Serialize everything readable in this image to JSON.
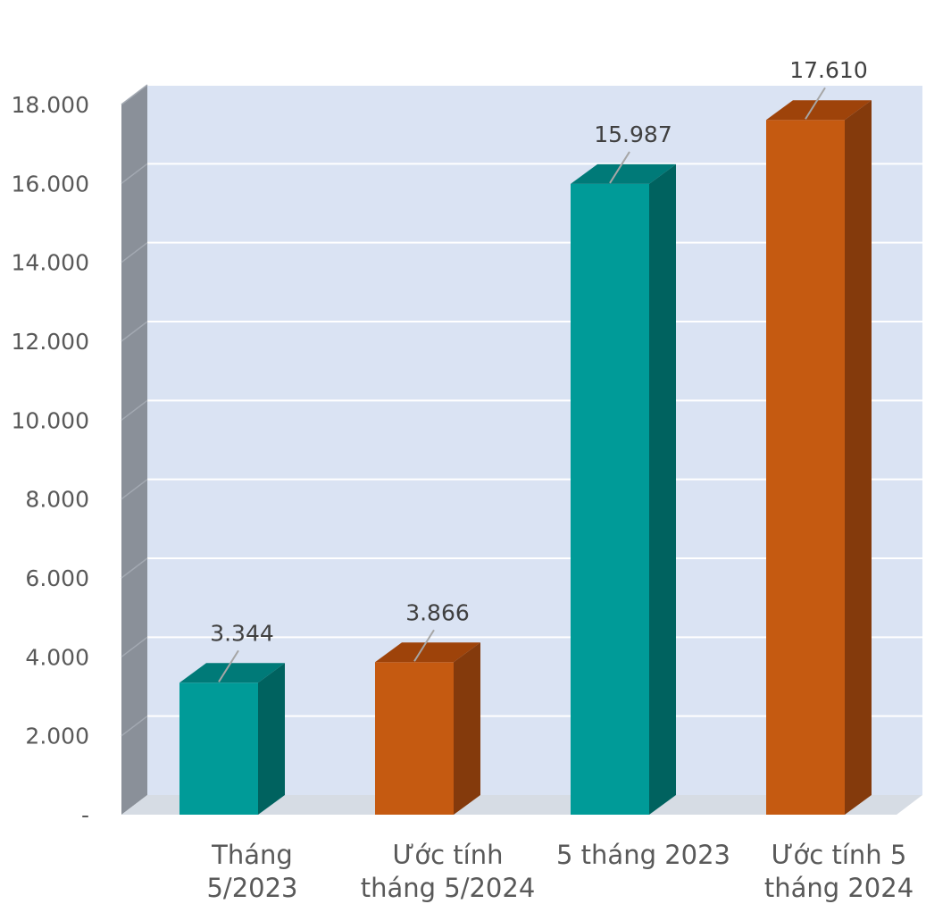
{
  "chart_data": {
    "type": "bar",
    "style": "3d-column",
    "categories": [
      [
        "Tháng",
        "5/2023"
      ],
      [
        "Ước tính",
        "tháng 5/2024"
      ],
      [
        "5 tháng 2023"
      ],
      [
        "Ước tính 5",
        "tháng 2024"
      ]
    ],
    "values": [
      3344,
      3866,
      15987,
      17610
    ],
    "value_labels": [
      "3.344",
      "3.866",
      "15.987",
      "17.610"
    ],
    "bar_colors": [
      "#009b98",
      "#c55a11",
      "#009b98",
      "#c55a11"
    ],
    "bar_top_colors": [
      "#007a78",
      "#9e430a",
      "#007a78",
      "#9e430a"
    ],
    "bar_side_colors": [
      "#00625f",
      "#843a0c",
      "#00625f",
      "#843a0c"
    ],
    "ylim": [
      0,
      18000
    ],
    "yticks": [
      0,
      2000,
      4000,
      6000,
      8000,
      10000,
      12000,
      14000,
      16000,
      18000
    ],
    "ytick_labels": [
      "-",
      "2.000",
      "4.000",
      "6.000",
      "8.000",
      "10.000",
      "12.000",
      "14.000",
      "16.000",
      "18.000"
    ],
    "grid": true,
    "colors": {
      "plot_wall": "#dae3f3",
      "side_wall": "#8a9099",
      "floor": "#d6dce4",
      "gridline": "#ffffff",
      "leader_line": "#a6a6a6"
    }
  }
}
